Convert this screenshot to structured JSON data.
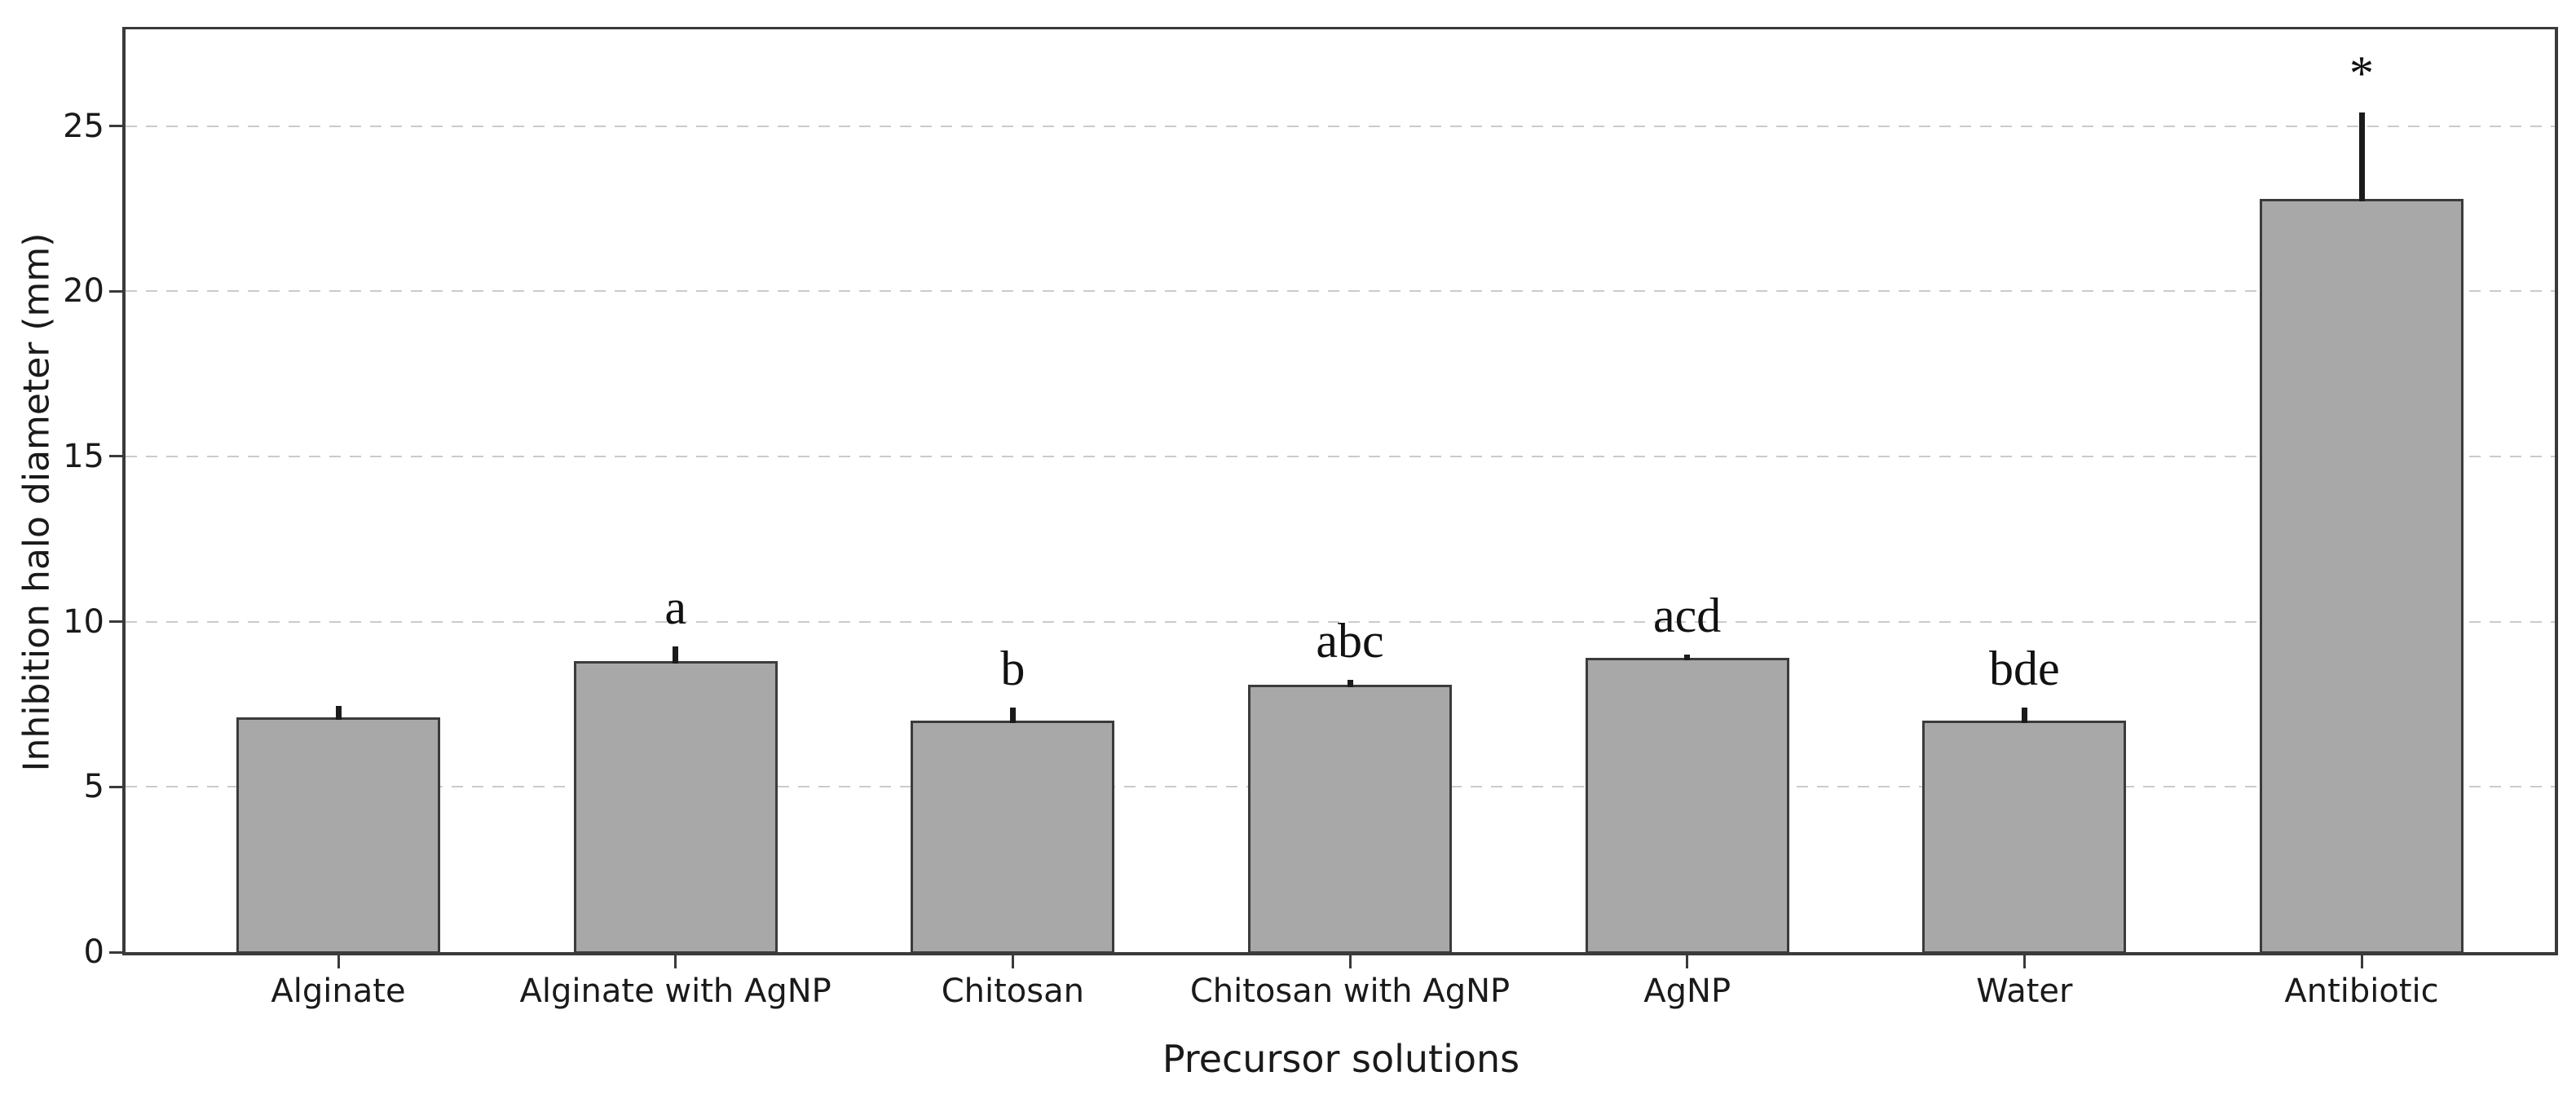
{
  "chart_data": {
    "type": "bar",
    "title": "",
    "xlabel": "Precursor solutions",
    "ylabel": "Inhibition halo diameter (mm)",
    "ylim": [
      0,
      28
    ],
    "yticks": [
      0,
      5,
      10,
      15,
      20,
      25
    ],
    "grid": "horizontal-dashed",
    "legend": "none",
    "categories": [
      "Alginate",
      "Alginate with AgNP",
      "Chitosan",
      "Chitosan with AgNP",
      "AgNP",
      "Water",
      "Antibiotic"
    ],
    "values": [
      7.1,
      8.8,
      7.0,
      8.1,
      8.9,
      7.0,
      22.8
    ],
    "errors_upper": [
      0.35,
      0.45,
      0.4,
      0.15,
      0.1,
      0.4,
      2.6
    ],
    "sig_labels": [
      "",
      "a",
      "b",
      "abc",
      "acd",
      "bde",
      "*"
    ],
    "colors": {
      "bar_fill": "#a8a8a8",
      "bar_edge": "#3b3b3b",
      "error_bar": "#1b1b1b",
      "gridline": "#cbcbcb",
      "spine": "#3a3a3a",
      "text": "#1a1a1a",
      "background": "#ffffff"
    }
  }
}
